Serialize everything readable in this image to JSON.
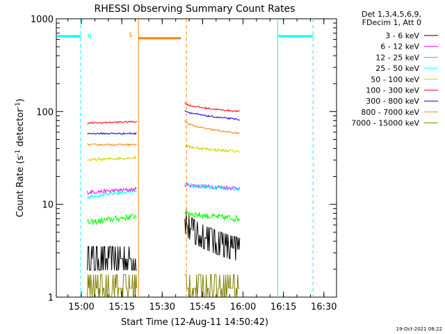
{
  "chart_data": {
    "type": "line",
    "title": "RHESSI Observing Summary Count Rates",
    "xlabel": "Start Time (12-Aug-11 14:50:42)",
    "ylabel": "Count Rate (s⁻¹ detector⁻¹)",
    "ylabel_parts": [
      "Count Rate (s",
      "-1",
      " detector",
      "-1",
      ")"
    ],
    "yscale": "log",
    "ylim": [
      1,
      1000
    ],
    "xlim_min": [
      0,
      104
    ],
    "y_ticks": [
      {
        "v": 1,
        "label": "1"
      },
      {
        "v": 10,
        "label": "10"
      },
      {
        "v": 100,
        "label": "100"
      },
      {
        "v": 1000,
        "label": "1000"
      }
    ],
    "x_ticks": [
      {
        "m": 9.3,
        "label": "15:00"
      },
      {
        "m": 24.3,
        "label": "15:15"
      },
      {
        "m": 39.3,
        "label": "15:30"
      },
      {
        "m": 54.3,
        "label": "15:45"
      },
      {
        "m": 69.3,
        "label": "16:00"
      },
      {
        "m": 84.3,
        "label": "16:15"
      },
      {
        "m": 99.3,
        "label": "16:30"
      }
    ],
    "legend_header": [
      "Det 1,3,4,5,6,9,",
      "FDecim 1, Att 0"
    ],
    "series": [
      {
        "name": "3 - 6 keV",
        "color": "#000000",
        "seg1": [
          2.6,
          2.6
        ],
        "seg2": [
          7.0,
          3.2
        ],
        "noise": 0.16
      },
      {
        "name": "6 - 12 keV",
        "color": "#ff00ff",
        "seg1": [
          13.5,
          14.5
        ],
        "seg2": [
          16.5,
          15.0
        ],
        "noise": 0.05
      },
      {
        "name": "12 - 25 keV",
        "color": "#00ff00",
        "seg1": [
          6.3,
          7.5
        ],
        "seg2": [
          8.5,
          7.0
        ],
        "noise": 0.08
      },
      {
        "name": "25 - 50 keV",
        "color": "#00ffff",
        "seg1": [
          12.0,
          14.0
        ],
        "seg2": [
          17.0,
          14.5
        ],
        "noise": 0.045
      },
      {
        "name": "50 - 100 keV",
        "color": "#d2d200",
        "seg1": [
          30.0,
          32.0
        ],
        "seg2": [
          44.0,
          37.0
        ],
        "noise": 0.035
      },
      {
        "name": "100 - 300 keV",
        "color": "#ff0000",
        "seg1": [
          75.0,
          78.0
        ],
        "seg2": [
          125.0,
          100.0
        ],
        "noise": 0.02
      },
      {
        "name": "300 - 800 keV",
        "color": "#0000ff",
        "seg1": [
          58.0,
          58.0
        ],
        "seg2": [
          105.0,
          82.0
        ],
        "noise": 0.02
      },
      {
        "name": "800 - 7000 keV",
        "color": "#ff8000",
        "seg1": [
          44.0,
          44.0
        ],
        "seg2": [
          80.0,
          58.0
        ],
        "noise": 0.02
      },
      {
        "name": "7000 - 15000 keV",
        "color": "#808000",
        "seg1": [
          1.25,
          1.25
        ],
        "seg2": [
          1.25,
          1.25
        ],
        "noise": 0.2
      }
    ],
    "segments": [
      [
        11.5,
        30.0
      ],
      [
        47.7,
        68.3
      ]
    ],
    "night": {
      "label": "N",
      "color": "#00ffff",
      "level": 650,
      "spans": [
        [
          0,
          9.0
        ],
        [
          82.2,
          95.3
        ]
      ],
      "solid_at": [
        82.2
      ],
      "dashed_at": [
        9.0,
        95.3
      ]
    },
    "saa": {
      "label": "S",
      "color": "#ff8000",
      "level": 650,
      "span": [
        30.5,
        48.3
      ],
      "solid_at": [
        30.5
      ],
      "dashed_at": [
        48.3
      ]
    },
    "footer_date": "19-Oct-2021 08:22"
  }
}
